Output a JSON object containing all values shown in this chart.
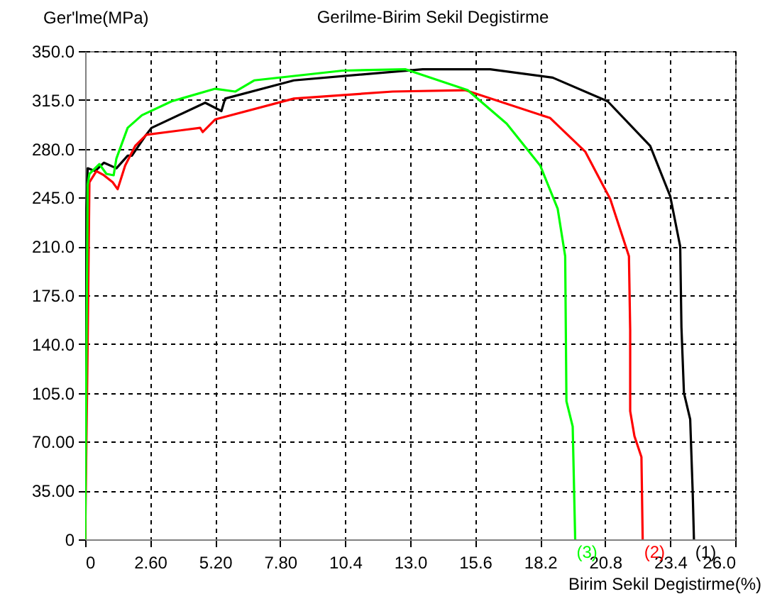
{
  "chart_data": {
    "type": "line",
    "title": "Gerilme-Birim Sekil Degistirme",
    "xlabel": "Birim Sekil Degistirme(%)",
    "ylabel": "Ger'lme(MPa)",
    "xlim": [
      0,
      26
    ],
    "ylim": [
      0,
      350
    ],
    "xticks": [
      {
        "value": 0,
        "label": "0"
      },
      {
        "value": 2.6,
        "label": "2.60"
      },
      {
        "value": 5.2,
        "label": "5.20"
      },
      {
        "value": 7.8,
        "label": "7.80"
      },
      {
        "value": 10.4,
        "label": "10.4"
      },
      {
        "value": 13,
        "label": "13.0"
      },
      {
        "value": 15.6,
        "label": "15.6"
      },
      {
        "value": 18.2,
        "label": "18.2"
      },
      {
        "value": 20.8,
        "label": "20.8"
      },
      {
        "value": 23.4,
        "label": "23.4"
      },
      {
        "value": 26,
        "label": "26.0"
      }
    ],
    "yticks": [
      {
        "value": 0,
        "label": "0"
      },
      {
        "value": 35,
        "label": "35.00"
      },
      {
        "value": 70,
        "label": "70.00"
      },
      {
        "value": 105,
        "label": "105.0"
      },
      {
        "value": 140,
        "label": "140.0"
      },
      {
        "value": 175,
        "label": "175.0"
      },
      {
        "value": 210,
        "label": "210.0"
      },
      {
        "value": 245,
        "label": "245.0"
      },
      {
        "value": 280,
        "label": "280.0"
      },
      {
        "value": 315,
        "label": "315.0"
      },
      {
        "value": 350,
        "label": "350.0"
      }
    ],
    "grid": true,
    "line_style": "solid",
    "marker": "none",
    "legend": false,
    "series": [
      {
        "name": "(1)",
        "color": "#000000",
        "x": [
          0,
          0.05,
          0.1,
          0.4,
          0.75,
          1.25,
          1.7,
          1.87,
          2.44,
          2.66,
          4.8,
          5.45,
          5.6,
          8.35,
          13.5,
          16.2,
          18.7,
          20.9,
          22.6,
          23.4,
          23.8,
          23.85,
          23.95,
          24.2,
          24.3,
          24.35
        ],
        "values": [
          0,
          237,
          266,
          264,
          270,
          266,
          275,
          275,
          290,
          295,
          313,
          307,
          316,
          329,
          337,
          337,
          331,
          314,
          282,
          246,
          210,
          152,
          105,
          86,
          34,
          0
        ]
      },
      {
        "name": "(2)",
        "color": "#ff0000",
        "x": [
          0,
          0.1,
          0.17,
          0.45,
          0.75,
          1.1,
          1.3,
          1.6,
          2.0,
          2.45,
          4.6,
          4.7,
          5.2,
          8.35,
          12.3,
          15.2,
          18.6,
          20.0,
          21.0,
          21.75,
          21.8,
          21.8,
          21.97,
          22.25,
          22.3
        ],
        "values": [
          0,
          140,
          256,
          264,
          261,
          256,
          251,
          268,
          282,
          290,
          295,
          292,
          301,
          316,
          321,
          322,
          302,
          278,
          244,
          203,
          150,
          92,
          74,
          59,
          0
        ]
      },
      {
        "name": "(3)",
        "color": "#00ff00",
        "x": [
          0,
          0.1,
          0.17,
          0.57,
          0.85,
          1.14,
          1.25,
          1.7,
          2.27,
          3.46,
          5.2,
          6.0,
          6.76,
          10.3,
          12.8,
          15.3,
          16.86,
          18.2,
          18.9,
          19.2,
          19.25,
          19.5,
          19.6
        ],
        "values": [
          0,
          254,
          262,
          269,
          262,
          261,
          273,
          295,
          304,
          314,
          323,
          321,
          329,
          336,
          337,
          322,
          298,
          268,
          237,
          203,
          99,
          81,
          0
        ]
      }
    ]
  }
}
